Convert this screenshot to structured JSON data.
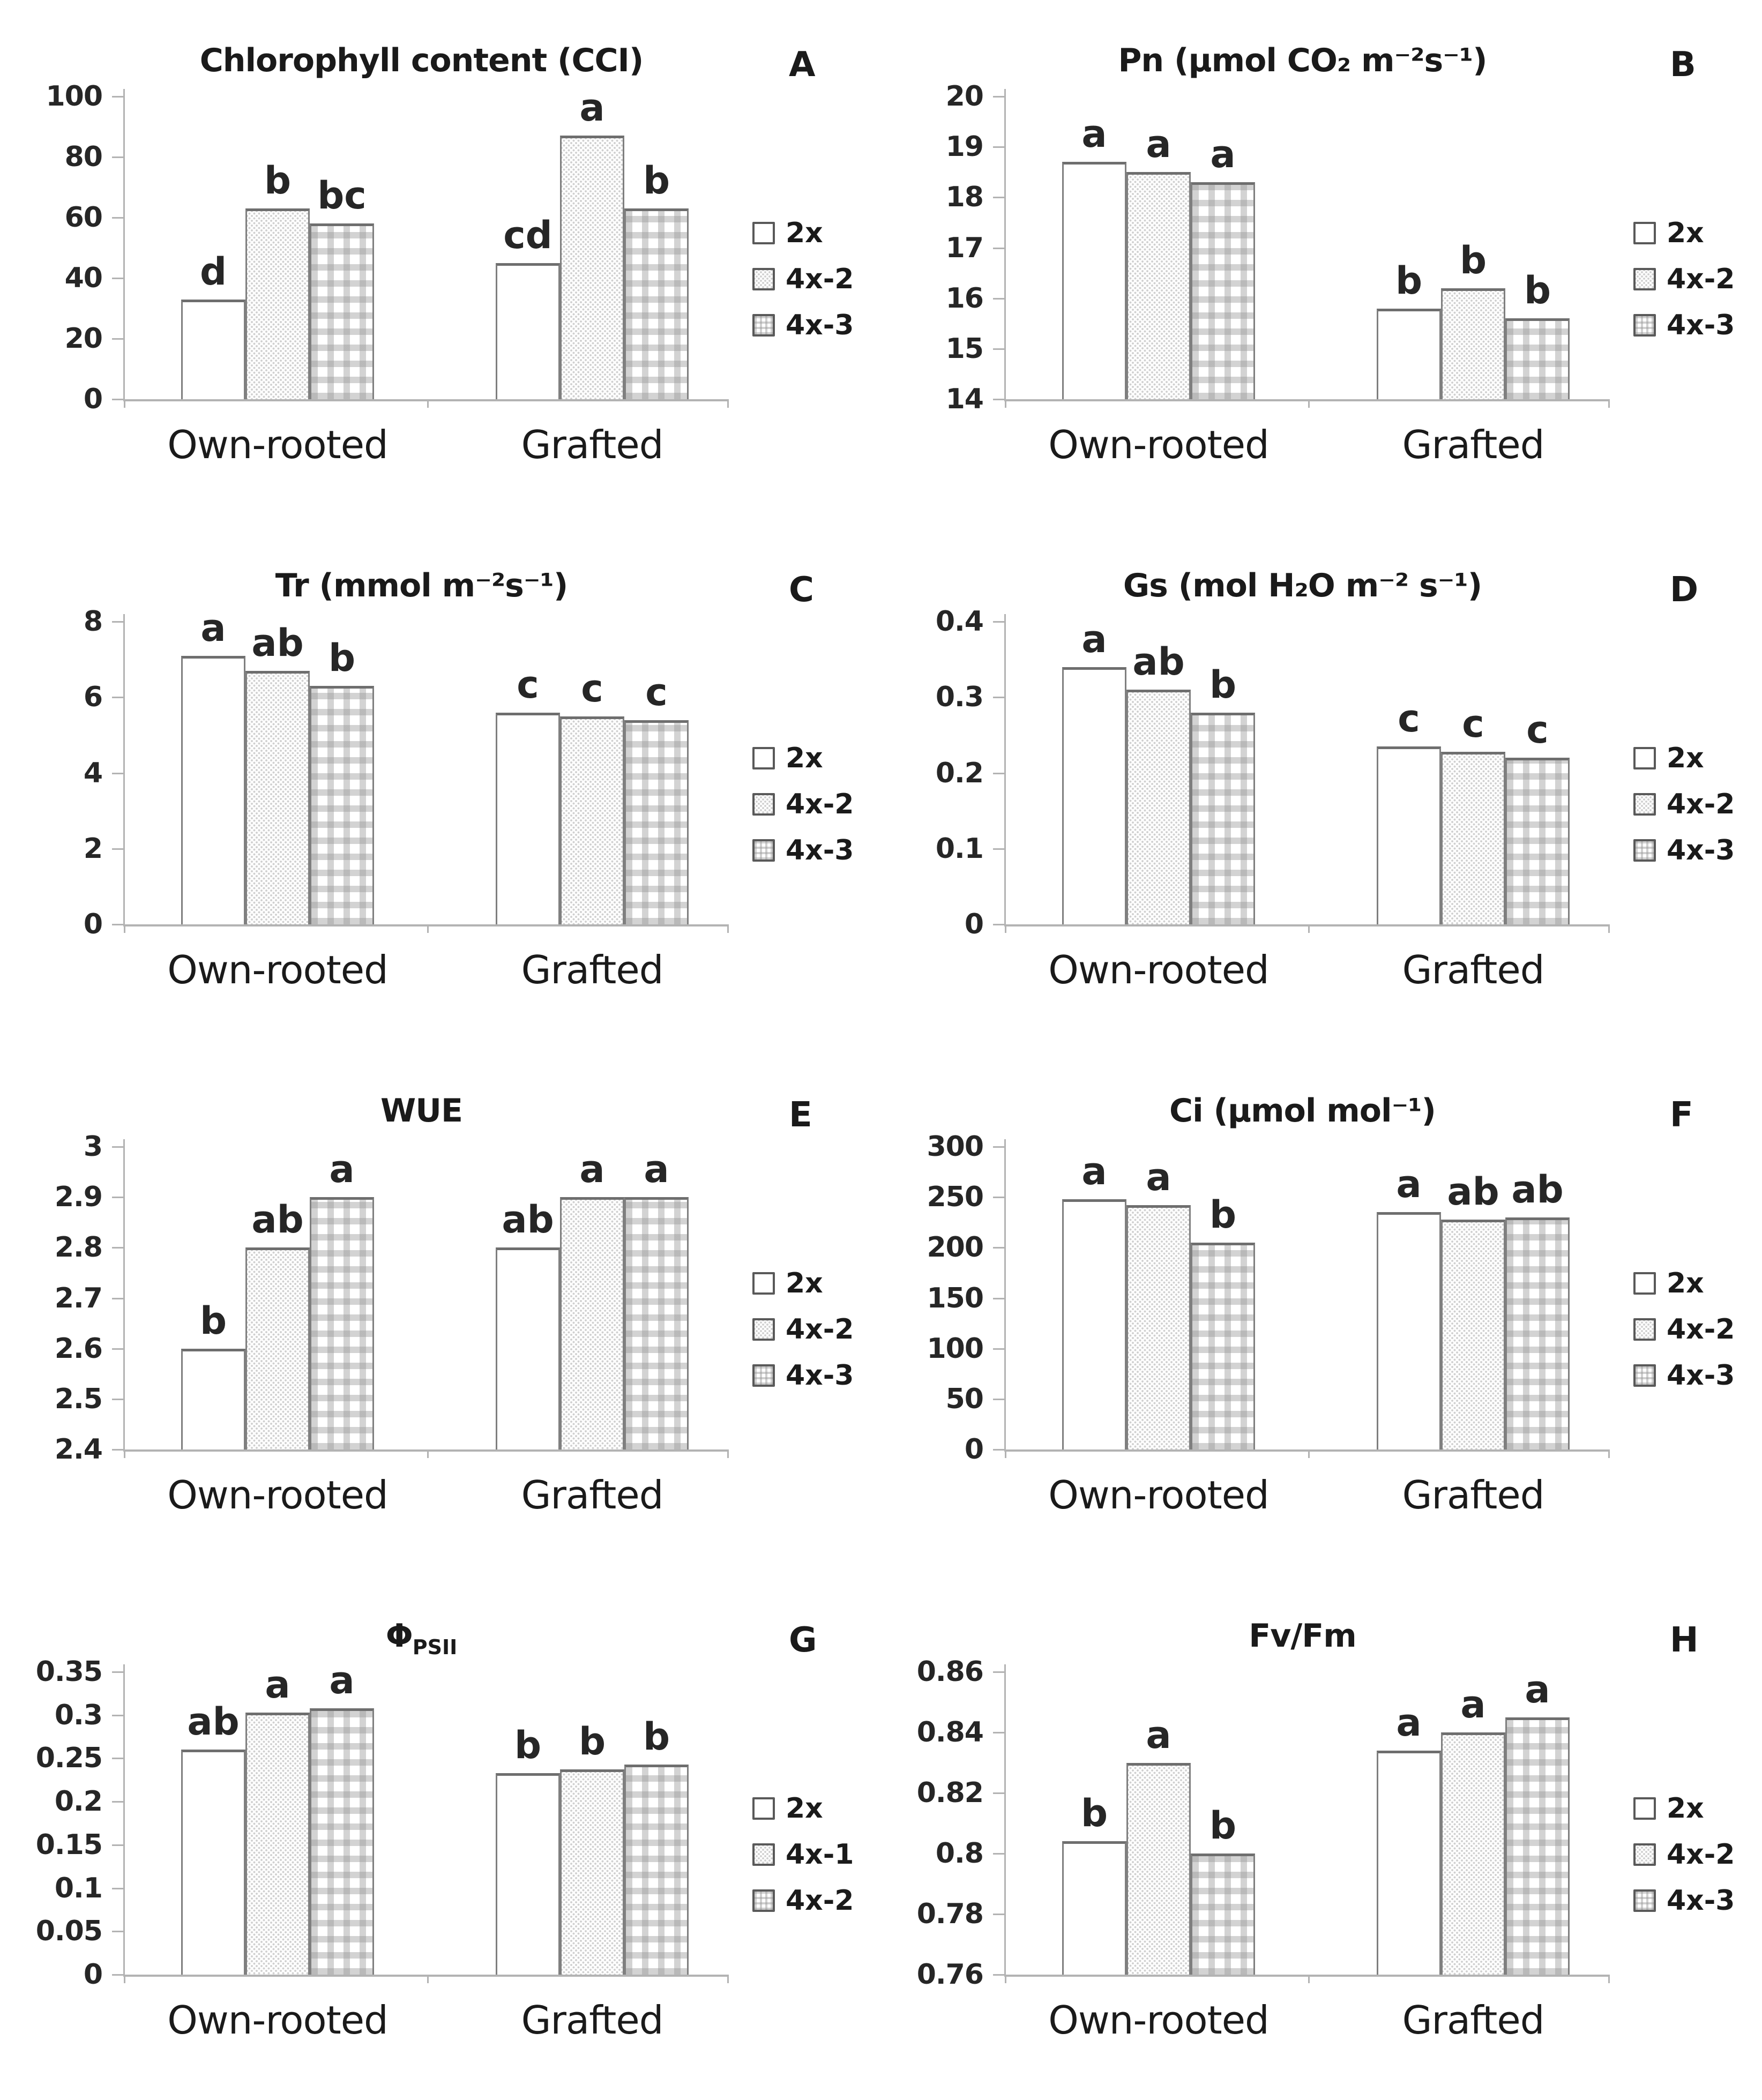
{
  "chart_data": [
    {
      "panel": "A",
      "type": "bar",
      "title": "Chlorophyll content (CCI)",
      "ylim": [
        0,
        100
      ],
      "yticks": [
        "0",
        "20",
        "40",
        "60",
        "80",
        "100"
      ],
      "categories": [
        "Own-rooted",
        "Grafted"
      ],
      "grid": false,
      "legend_position": "right",
      "series": [
        {
          "name": "2x",
          "pattern": "plain",
          "values": [
            33,
            45
          ],
          "sig_letters": [
            "d",
            "cd"
          ]
        },
        {
          "name": "4x-2",
          "pattern": "dots",
          "values": [
            63,
            87
          ],
          "sig_letters": [
            "b",
            "a"
          ]
        },
        {
          "name": "4x-3",
          "pattern": "check",
          "values": [
            58,
            63
          ],
          "sig_letters": [
            "bc",
            "b"
          ]
        }
      ]
    },
    {
      "panel": "B",
      "type": "bar",
      "title": "Pn (μmol CO₂ m⁻²s⁻¹)",
      "ylim": [
        14,
        20
      ],
      "yticks": [
        "14",
        "15",
        "16",
        "17",
        "18",
        "19",
        "20"
      ],
      "categories": [
        "Own-rooted",
        "Grafted"
      ],
      "grid": false,
      "legend_position": "right",
      "series": [
        {
          "name": "2x",
          "pattern": "plain",
          "values": [
            18.7,
            15.8
          ],
          "sig_letters": [
            "a",
            "b"
          ]
        },
        {
          "name": "4x-2",
          "pattern": "dots",
          "values": [
            18.5,
            16.2
          ],
          "sig_letters": [
            "a",
            "b"
          ]
        },
        {
          "name": "4x-3",
          "pattern": "check",
          "values": [
            18.3,
            15.6
          ],
          "sig_letters": [
            "a",
            "b"
          ]
        }
      ]
    },
    {
      "panel": "C",
      "type": "bar",
      "title": "Tr (mmol m⁻²s⁻¹)",
      "ylim": [
        0,
        8
      ],
      "yticks": [
        "0",
        "2",
        "4",
        "6",
        "8"
      ],
      "categories": [
        "Own-rooted",
        "Grafted"
      ],
      "grid": false,
      "legend_position": "right",
      "series": [
        {
          "name": "2x",
          "pattern": "plain",
          "values": [
            7.1,
            5.6
          ],
          "sig_letters": [
            "a",
            "c"
          ]
        },
        {
          "name": "4x-2",
          "pattern": "dots",
          "values": [
            6.7,
            5.5
          ],
          "sig_letters": [
            "ab",
            "c"
          ]
        },
        {
          "name": "4x-3",
          "pattern": "check",
          "values": [
            6.3,
            5.4
          ],
          "sig_letters": [
            "b",
            "c"
          ]
        }
      ]
    },
    {
      "panel": "D",
      "type": "bar",
      "title": "Gs (mol H₂O m⁻² s⁻¹)",
      "ylim": [
        0,
        0.4
      ],
      "yticks": [
        "0",
        "0.1",
        "0.2",
        "0.3",
        "0.4"
      ],
      "categories": [
        "Own-rooted",
        "Grafted"
      ],
      "grid": false,
      "legend_position": "right",
      "series": [
        {
          "name": "2x",
          "pattern": "plain",
          "values": [
            0.34,
            0.235
          ],
          "sig_letters": [
            "a",
            "c"
          ]
        },
        {
          "name": "4x-2",
          "pattern": "dots",
          "values": [
            0.31,
            0.228
          ],
          "sig_letters": [
            "ab",
            "c"
          ]
        },
        {
          "name": "4x-3",
          "pattern": "check",
          "values": [
            0.28,
            0.22
          ],
          "sig_letters": [
            "b",
            "c"
          ]
        }
      ]
    },
    {
      "panel": "E",
      "type": "bar",
      "title": "WUE",
      "ylim": [
        2.4,
        3.0
      ],
      "yticks": [
        "2.4",
        "2.5",
        "2.6",
        "2.7",
        "2.8",
        "2.9",
        "3"
      ],
      "categories": [
        "Own-rooted",
        "Grafted"
      ],
      "grid": false,
      "legend_position": "right",
      "series": [
        {
          "name": "2x",
          "pattern": "plain",
          "values": [
            2.6,
            2.8
          ],
          "sig_letters": [
            "b",
            "ab"
          ]
        },
        {
          "name": "4x-2",
          "pattern": "dots",
          "values": [
            2.8,
            2.9
          ],
          "sig_letters": [
            "ab",
            "a"
          ]
        },
        {
          "name": "4x-3",
          "pattern": "check",
          "values": [
            2.9,
            2.9
          ],
          "sig_letters": [
            "a",
            "a"
          ]
        }
      ]
    },
    {
      "panel": "F",
      "type": "bar",
      "title": "Ci (μmol mol⁻¹)",
      "ylim": [
        0,
        300
      ],
      "yticks": [
        "0",
        "50",
        "100",
        "150",
        "200",
        "250",
        "300"
      ],
      "categories": [
        "Own-rooted",
        "Grafted"
      ],
      "grid": false,
      "legend_position": "right",
      "series": [
        {
          "name": "2x",
          "pattern": "plain",
          "values": [
            248,
            235
          ],
          "sig_letters": [
            "a",
            "a"
          ]
        },
        {
          "name": "4x-2",
          "pattern": "dots",
          "values": [
            242,
            228
          ],
          "sig_letters": [
            "a",
            "ab"
          ]
        },
        {
          "name": "4x-3",
          "pattern": "check",
          "values": [
            205,
            230
          ],
          "sig_letters": [
            "b",
            "ab"
          ]
        }
      ]
    },
    {
      "panel": "G",
      "type": "bar",
      "title": "Φ",
      "title_sub": "PSII",
      "ylim": [
        0,
        0.35
      ],
      "yticks": [
        "0",
        "0.05",
        "0.1",
        "0.15",
        "0.2",
        "0.25",
        "0.3",
        "0.35"
      ],
      "categories": [
        "Own-rooted",
        "Grafted"
      ],
      "grid": false,
      "legend_position": "right",
      "series": [
        {
          "name": "2x",
          "pattern": "plain",
          "values": [
            0.26,
            0.233
          ],
          "sig_letters": [
            "ab",
            "b"
          ]
        },
        {
          "name": "4x-1",
          "pattern": "dots",
          "values": [
            0.303,
            0.237
          ],
          "sig_letters": [
            "a",
            "b"
          ]
        },
        {
          "name": "4x-2",
          "pattern": "check",
          "values": [
            0.308,
            0.243
          ],
          "sig_letters": [
            "a",
            "b"
          ]
        }
      ]
    },
    {
      "panel": "H",
      "type": "bar",
      "title": "Fv/Fm",
      "ylim": [
        0.76,
        0.86
      ],
      "yticks": [
        "0.76",
        "0.78",
        "0.8",
        "0.82",
        "0.84",
        "0.86"
      ],
      "categories": [
        "Own-rooted",
        "Grafted"
      ],
      "grid": false,
      "legend_position": "right",
      "series": [
        {
          "name": "2x",
          "pattern": "plain",
          "values": [
            0.804,
            0.834
          ],
          "sig_letters": [
            "b",
            "a"
          ]
        },
        {
          "name": "4x-2",
          "pattern": "dots",
          "values": [
            0.83,
            0.84
          ],
          "sig_letters": [
            "a",
            "a"
          ]
        },
        {
          "name": "4x-3",
          "pattern": "check",
          "values": [
            0.8,
            0.845
          ],
          "sig_letters": [
            "b",
            "a"
          ]
        }
      ]
    }
  ],
  "colors": {
    "background": "#ffffff",
    "bar_fill": "#ffffff",
    "bar_border": "#7f7f7f",
    "axis": "#b3b3b3",
    "text": "#1a1a1a",
    "pattern_gray": "#d0d0d0"
  }
}
